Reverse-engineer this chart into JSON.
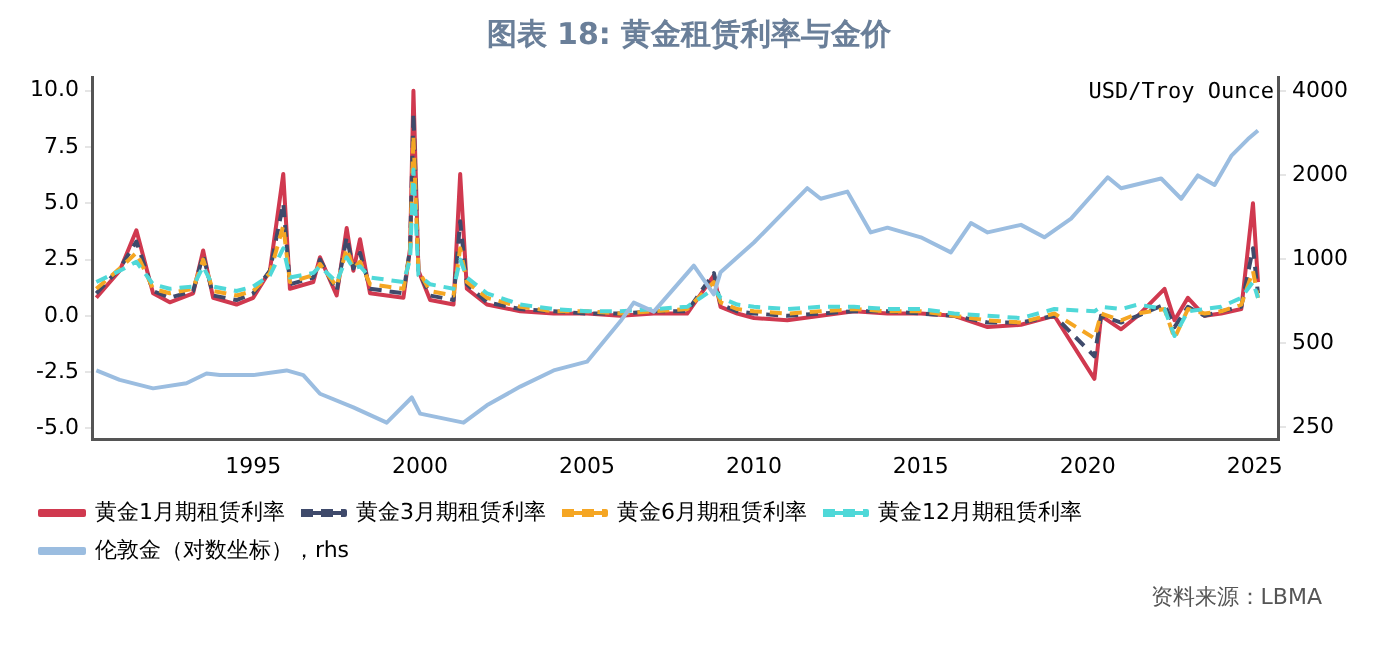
{
  "chart_data": {
    "type": "line",
    "title": "图表 18: 黄金租赁利率与金价",
    "y2label": "USD/Troy Ounce",
    "annotations": [
      "资料来源：LBMA"
    ],
    "x": [
      1990.3,
      1991,
      1991.5,
      1992,
      1992.5,
      1993.2,
      1993.5,
      1993.8,
      1994.5,
      1995,
      1995.5,
      1995.9,
      1996.1,
      1996.8,
      1997,
      1997.5,
      1997.8,
      1998,
      1998.2,
      1998.5,
      1999,
      1999.5,
      1999.7,
      1999.8,
      1999.95,
      2000.3,
      2001,
      2001.2,
      2001.4,
      2002,
      2003,
      2004,
      2005,
      2006,
      2007,
      2008,
      2008.8,
      2009,
      2009.5,
      2010,
      2011,
      2012,
      2013,
      2014,
      2015,
      2016,
      2017,
      2018,
      2019,
      2020.2,
      2020.4,
      2021,
      2021.5,
      2022.3,
      2022.6,
      2023,
      2023.5,
      2024,
      2024.6,
      2024.95,
      2025.1
    ],
    "series": [
      {
        "name": "黄金1月期租赁利率",
        "color": "#d0394f",
        "line_style": "solid",
        "values": [
          0.8,
          2.0,
          3.8,
          1.0,
          0.6,
          1.0,
          2.9,
          0.8,
          0.5,
          0.8,
          2.0,
          6.3,
          1.2,
          1.5,
          2.6,
          0.9,
          3.9,
          2.0,
          3.4,
          1.0,
          0.9,
          0.8,
          3.0,
          10.0,
          2.0,
          0.7,
          0.5,
          6.3,
          1.2,
          0.5,
          0.2,
          0.1,
          0.1,
          0.0,
          0.1,
          0.1,
          1.8,
          0.4,
          0.1,
          -0.1,
          -0.2,
          0.0,
          0.2,
          0.1,
          0.1,
          0.0,
          -0.5,
          -0.4,
          0.0,
          -2.8,
          0.0,
          -0.6,
          0.0,
          1.2,
          -0.2,
          0.8,
          0.0,
          0.1,
          0.3,
          5.0,
          1.5
        ]
      },
      {
        "name": "黄金3月期租赁利率",
        "color": "#3f4a6b",
        "line_style": "dashed",
        "values": [
          1.0,
          2.1,
          3.3,
          1.1,
          0.8,
          1.1,
          2.7,
          0.9,
          0.7,
          1.0,
          2.0,
          5.0,
          1.4,
          1.7,
          2.5,
          1.1,
          3.5,
          2.1,
          2.8,
          1.2,
          1.1,
          1.0,
          3.0,
          9.0,
          2.0,
          0.9,
          0.7,
          4.2,
          1.4,
          0.6,
          0.3,
          0.2,
          0.1,
          0.1,
          0.2,
          0.2,
          1.9,
          0.5,
          0.2,
          0.1,
          0.0,
          0.1,
          0.2,
          0.2,
          0.1,
          0.0,
          -0.3,
          -0.3,
          0.0,
          -1.8,
          0.0,
          -0.3,
          0.0,
          0.5,
          -0.5,
          0.4,
          0.0,
          0.2,
          0.4,
          3.0,
          1.0
        ]
      },
      {
        "name": "黄金6月期租赁利率",
        "color": "#f5a623",
        "line_style": "dashed",
        "values": [
          1.2,
          2.1,
          2.8,
          1.2,
          1.0,
          1.2,
          2.5,
          1.1,
          0.9,
          1.1,
          1.9,
          4.0,
          1.5,
          1.8,
          2.3,
          1.3,
          3.0,
          2.1,
          2.4,
          1.4,
          1.3,
          1.2,
          2.8,
          8.0,
          2.0,
          1.1,
          0.9,
          3.0,
          1.5,
          0.8,
          0.4,
          0.2,
          0.2,
          0.1,
          0.2,
          0.3,
          1.5,
          0.6,
          0.3,
          0.2,
          0.1,
          0.2,
          0.3,
          0.2,
          0.2,
          0.0,
          -0.2,
          -0.3,
          0.1,
          -1.0,
          0.1,
          -0.2,
          0.1,
          0.3,
          -1.0,
          0.3,
          0.1,
          0.2,
          0.5,
          2.0,
          0.8
        ]
      },
      {
        "name": "黄金12月期租赁利率",
        "color": "#4fd8d8",
        "line_style": "dashed",
        "values": [
          1.5,
          2.0,
          2.4,
          1.4,
          1.2,
          1.3,
          2.2,
          1.3,
          1.1,
          1.3,
          1.8,
          3.0,
          1.7,
          1.9,
          2.2,
          1.5,
          2.6,
          2.1,
          2.2,
          1.7,
          1.6,
          1.5,
          2.5,
          6.5,
          1.8,
          1.4,
          1.2,
          2.5,
          1.7,
          1.0,
          0.5,
          0.3,
          0.2,
          0.2,
          0.3,
          0.4,
          1.2,
          0.8,
          0.5,
          0.4,
          0.3,
          0.4,
          0.4,
          0.3,
          0.3,
          0.1,
          0.0,
          -0.1,
          0.3,
          0.2,
          0.4,
          0.3,
          0.5,
          0.3,
          -0.9,
          0.2,
          0.3,
          0.4,
          0.8,
          1.5,
          0.8
        ]
      },
      {
        "name": "伦敦金（对数坐标），rhs",
        "color": "#9bbde0",
        "line_style": "solid",
        "axis": "y2",
        "x": [
          1990.3,
          1991,
          1992,
          1993,
          1993.6,
          1994,
          1995,
          1996,
          1996.5,
          1997,
          1998,
          1999,
          1999.75,
          2000,
          2001.3,
          2002,
          2003,
          2004,
          2005,
          2006,
          2006.4,
          2007,
          2008.2,
          2008.8,
          2009,
          2010,
          2011.6,
          2012,
          2012.8,
          2013.5,
          2014,
          2015,
          2015.9,
          2016.5,
          2017,
          2018,
          2018.7,
          2019.5,
          2020.6,
          2021,
          2022.2,
          2022.8,
          2023.3,
          2023.8,
          2024.3,
          2024.8,
          2025.1
        ],
        "values": [
          400,
          370,
          345,
          360,
          390,
          385,
          385,
          400,
          385,
          330,
          295,
          260,
          320,
          280,
          260,
          300,
          350,
          400,
          430,
          600,
          700,
          650,
          950,
          750,
          900,
          1150,
          1800,
          1650,
          1750,
          1250,
          1300,
          1200,
          1060,
          1350,
          1250,
          1330,
          1200,
          1400,
          1970,
          1800,
          1950,
          1650,
          2000,
          1850,
          2350,
          2700,
          2900
        ]
      }
    ],
    "xlim": [
      1990.2,
      2025.7
    ],
    "xticks": [
      1995,
      2000,
      2005,
      2010,
      2015,
      2020,
      2025
    ],
    "ylim": [
      -5.5,
      10.6
    ],
    "yticks": [
      {
        "value": -5,
        "label": "-5.0"
      },
      {
        "value": -2.5,
        "label": "-2.5"
      },
      {
        "value": 0,
        "label": "0.0"
      },
      {
        "value": 2.5,
        "label": "2.5"
      },
      {
        "value": 5,
        "label": "5.0"
      },
      {
        "value": 7.5,
        "label": "7.5"
      },
      {
        "value": 10,
        "label": "10.0"
      }
    ],
    "y2lim": [
      226,
      4500
    ],
    "y2ticks": [
      250,
      500,
      1000,
      2000,
      4000
    ],
    "log": "y2",
    "grid": false,
    "legend": "bottom",
    "marker": "none"
  }
}
